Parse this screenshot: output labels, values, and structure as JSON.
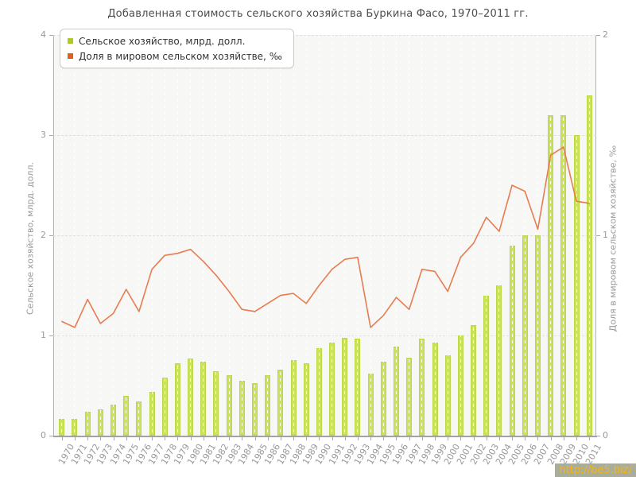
{
  "title": "Добавленная стоимость сельского хозяйства Буркина Фасо, 1970–2011 гг.",
  "watermark": {
    "text": "http://be5.biz/",
    "text_color": "#ffb10a",
    "bg_color": "#a9ae9b"
  },
  "legend": {
    "position": "top-left",
    "bars_swatch_color": "#aeca22",
    "line_swatch_color": "#e0611f"
  },
  "chart_data": {
    "type": "bar",
    "title": "Добавленная стоимость сельского хозяйства Буркина Фасо, 1970–2011 гг.",
    "categories": [
      "1970",
      "1971",
      "1972",
      "1973",
      "1974",
      "1975",
      "1976",
      "1977",
      "1978",
      "1979",
      "1980",
      "1981",
      "1982",
      "1983",
      "1984",
      "1985",
      "1986",
      "1987",
      "1988",
      "1989",
      "1990",
      "1991",
      "1992",
      "1993",
      "1994",
      "1995",
      "1996",
      "1997",
      "1998",
      "1999",
      "2000",
      "2001",
      "2002",
      "2003",
      "2004",
      "2005",
      "2006",
      "2007",
      "2008",
      "2009",
      "2010",
      "2011"
    ],
    "series": [
      {
        "name": "Сельское хозяйство, млрд. долл.",
        "type": "bar",
        "axis": "left",
        "fill_color": "#cbe25f",
        "border_color": "#b9d843",
        "values": [
          0.17,
          0.17,
          0.24,
          0.26,
          0.31,
          0.4,
          0.34,
          0.44,
          0.58,
          0.72,
          0.77,
          0.74,
          0.64,
          0.6,
          0.55,
          0.52,
          0.6,
          0.66,
          0.75,
          0.72,
          0.87,
          0.93,
          0.98,
          0.97,
          0.62,
          0.74,
          0.89,
          0.78,
          0.97,
          0.93,
          0.8,
          1.0,
          1.1,
          1.4,
          1.5,
          1.9,
          2.0,
          2.0,
          3.2,
          3.2,
          3.0,
          3.4
        ]
      },
      {
        "name": "Доля в мировом сельском хозяйстве, ‰",
        "type": "line",
        "axis": "right",
        "line_color": "#e87c50",
        "values": [
          0.57,
          0.54,
          0.68,
          0.56,
          0.61,
          0.73,
          0.62,
          0.83,
          0.9,
          0.91,
          0.93,
          0.87,
          0.8,
          0.72,
          0.63,
          0.62,
          0.66,
          0.7,
          0.71,
          0.66,
          0.75,
          0.83,
          0.88,
          0.89,
          0.54,
          0.6,
          0.69,
          0.63,
          0.83,
          0.82,
          0.72,
          0.89,
          0.96,
          1.09,
          1.02,
          1.25,
          1.22,
          1.03,
          1.4,
          1.44,
          1.17,
          1.16
        ]
      }
    ],
    "left_axis": {
      "label": "Сельское хозяйство, млрд. долл.",
      "range": [
        0,
        4
      ],
      "ticks": [
        0,
        1,
        2,
        3,
        4
      ]
    },
    "right_axis": {
      "label": "Доля в мировом сельском хозяйстве, ‰",
      "range": [
        0,
        2
      ],
      "ticks": [
        0,
        1,
        2
      ]
    },
    "grid": true,
    "legend_position": "top-left"
  }
}
